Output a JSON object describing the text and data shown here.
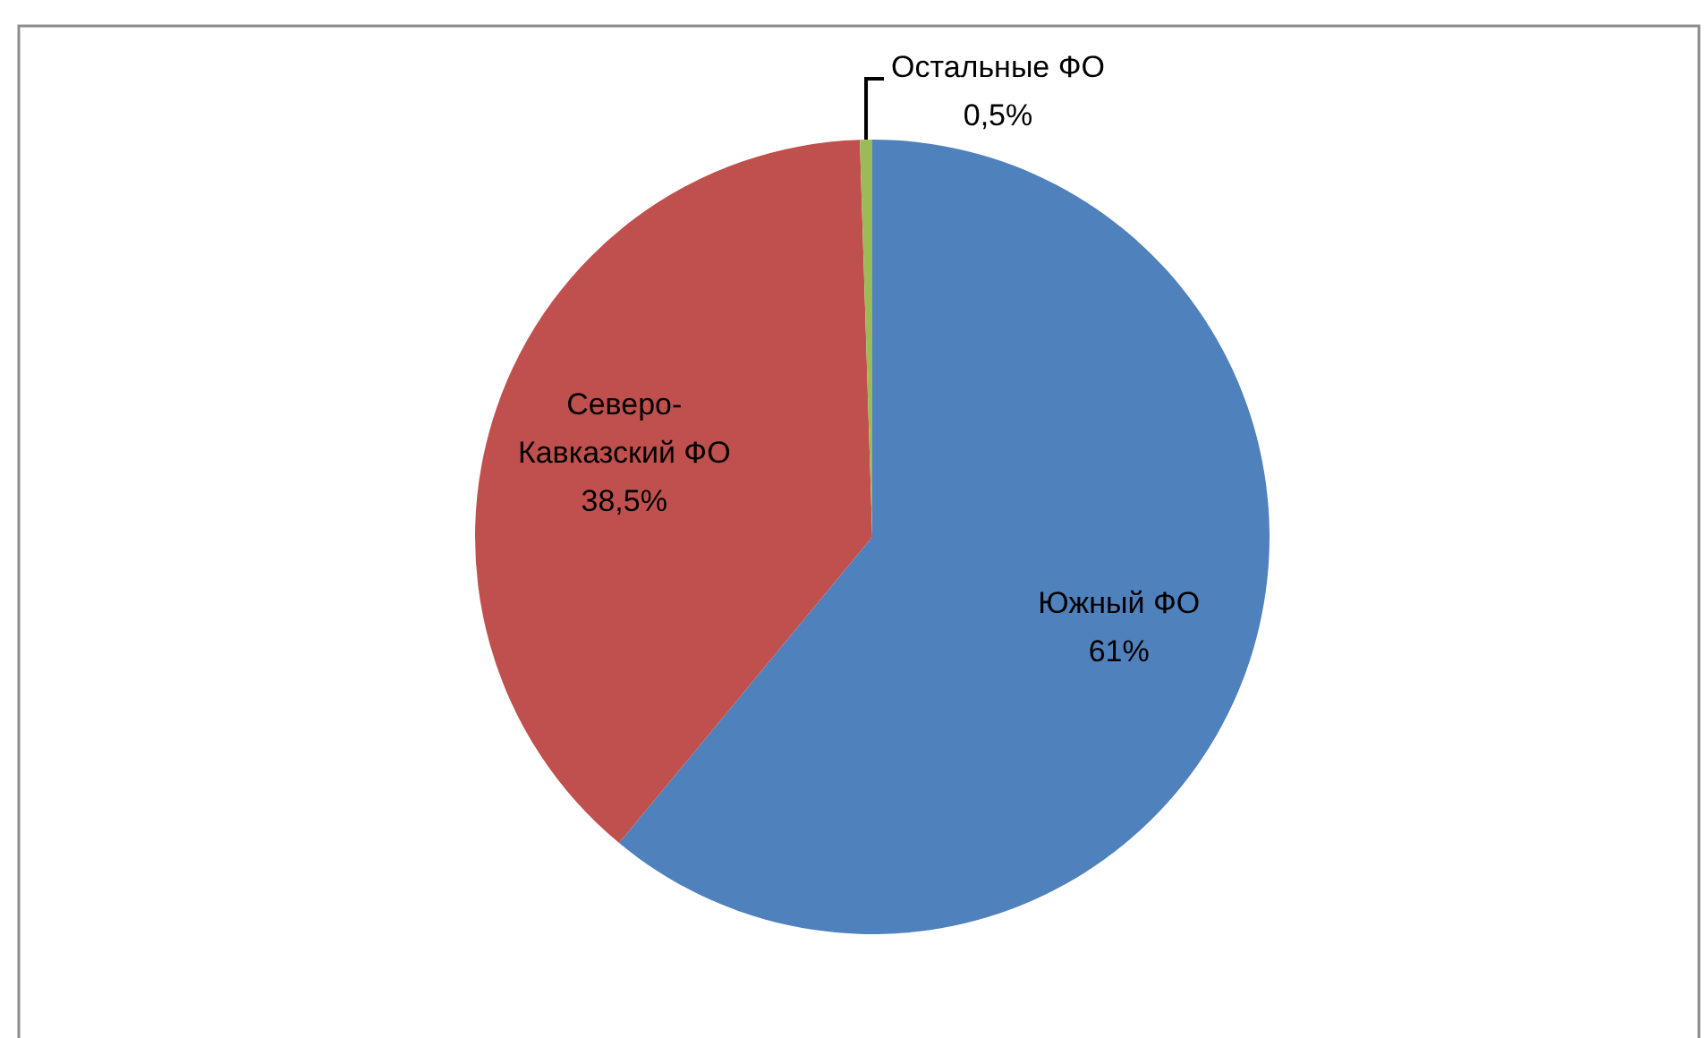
{
  "chart_data": {
    "type": "pie",
    "categories": [
      "Южный ФО",
      "Северо-Кавказский ФО",
      "Остальные ФО"
    ],
    "values": [
      61,
      38.5,
      0.5
    ],
    "colors": [
      "#4f81bd",
      "#c0504d",
      "#9bbb59"
    ],
    "value_labels": [
      "61%",
      "38,5%",
      "0,5%"
    ]
  }
}
